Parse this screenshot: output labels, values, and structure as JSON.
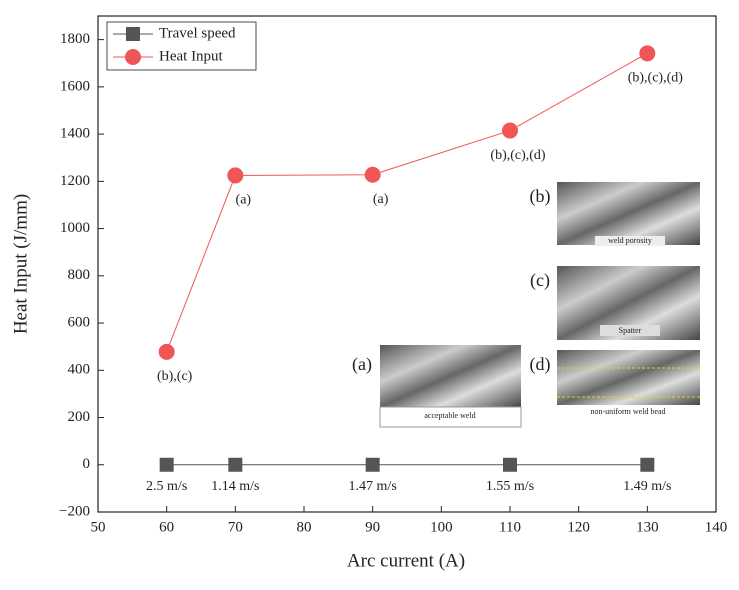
{
  "chart_data": {
    "type": "line",
    "xlabel": "Arc current (A)",
    "ylabel": "Heat Input (J/mm)",
    "xlim": [
      50,
      140
    ],
    "xticks": [
      50,
      60,
      70,
      80,
      90,
      100,
      110,
      120,
      130,
      140
    ],
    "ylim": [
      -200,
      1900
    ],
    "yticks": [
      {
        "value": -200,
        "label": "−200"
      },
      0,
      200,
      400,
      600,
      800,
      1000,
      1200,
      1400,
      1600,
      1800
    ],
    "legend": "upper left",
    "series": [
      {
        "name": "Travel speed",
        "color": "#555555",
        "marker": "square",
        "x": [
          60,
          70,
          90,
          110,
          130
        ],
        "values": [
          0,
          0,
          0,
          0,
          0
        ],
        "point_labels": [
          "2.5 m/s",
          "1.14 m/s",
          "1.47 m/s",
          "1.55 m/s",
          "1.49 m/s"
        ]
      },
      {
        "name": "Heat Input",
        "color": "#f05656",
        "marker": "circle",
        "x": [
          60,
          70,
          90,
          110,
          130
        ],
        "values": [
          478,
          1225,
          1228,
          1415,
          1742
        ],
        "point_labels": [
          "(b),(c)",
          "(a)",
          "(a)",
          "(b),(c),(d)",
          "(b),(c),(d)"
        ]
      }
    ],
    "insets": [
      {
        "label": "(b)",
        "caption": "weld porosity"
      },
      {
        "label": "(c)",
        "caption": "Spatter"
      },
      {
        "label": "(a)",
        "caption": "acceptable weld"
      },
      {
        "label": "(d)",
        "caption": "non-uniform weld bead"
      }
    ]
  }
}
